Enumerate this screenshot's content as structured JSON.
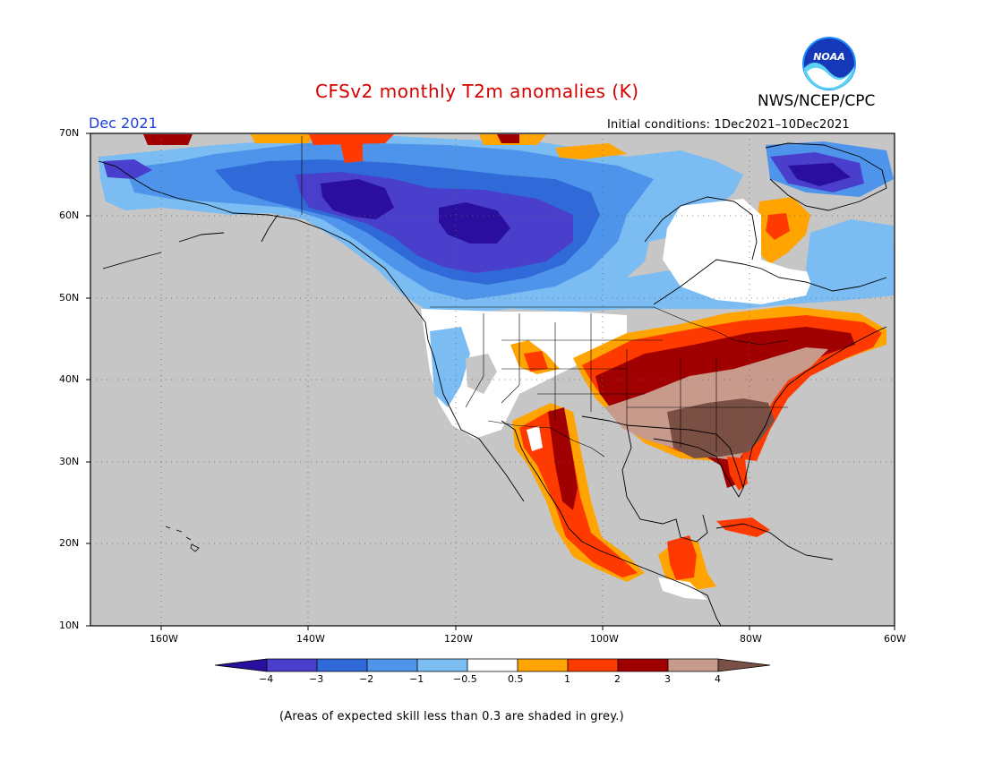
{
  "title": "CFSv2 monthly T2m anomalies (K)",
  "agency": "NWS/NCEP/CPC",
  "logo_text": "NOAA",
  "valid_month": "Dec 2021",
  "initial_conditions": "Initial conditions: 1Dec2021–10Dec2021",
  "footnote": "(Areas of expected skill less than 0.3 are shaded in grey.)",
  "latitude_labels": [
    "70N",
    "60N",
    "50N",
    "40N",
    "30N",
    "20N",
    "10N"
  ],
  "longitude_labels": [
    "160W",
    "140W",
    "120W",
    "100W",
    "80W",
    "60W"
  ],
  "colorbar": {
    "labels": [
      "−4",
      "−3",
      "−2",
      "−1",
      "−0.5",
      "0.5",
      "1",
      "2",
      "3",
      "4"
    ],
    "colors": [
      "#2a0f9e",
      "#4a3fcc",
      "#2f6ad8",
      "#4e94ea",
      "#7bbdf2",
      "#ffffff",
      "#ffa400",
      "#ff3a00",
      "#a10000",
      "#c79a8c",
      "#7a5044"
    ]
  },
  "no_skill_color": "#c6c6c6"
}
